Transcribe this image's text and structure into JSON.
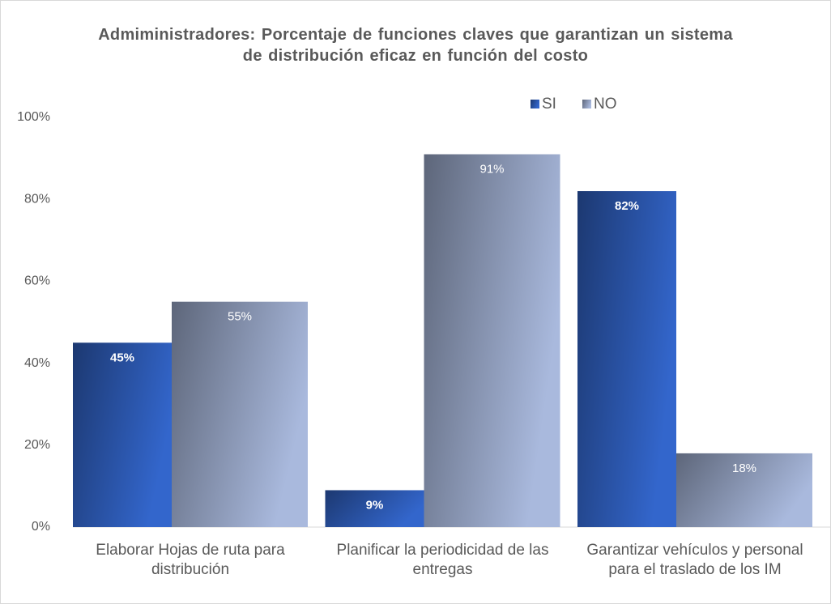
{
  "chart_data": {
    "type": "bar",
    "title": "Admiministradores: Porcentaje de funciones claves que garantizan un sistema de distribución eficaz en función del costo",
    "categories": [
      "Elaborar Hojas de ruta para distribución",
      "Planificar la periodicidad de las entregas",
      "Garantizar vehículos y personal para el traslado de los IM"
    ],
    "series": [
      {
        "name": "SI",
        "color": "#3366cc",
        "values": [
          45,
          9,
          82
        ],
        "value_labels": [
          "45%",
          "9%",
          "82%"
        ]
      },
      {
        "name": "NO",
        "color": "#a9b9dd",
        "values": [
          55,
          91,
          18
        ],
        "value_labels": [
          "55%",
          "91%",
          "18%"
        ]
      }
    ],
    "ylim": [
      0,
      100
    ],
    "yticks": [
      {
        "value": 0,
        "label": "0%"
      },
      {
        "value": 20,
        "label": "20%"
      },
      {
        "value": 40,
        "label": "40%"
      },
      {
        "value": 60,
        "label": "60%"
      },
      {
        "value": 80,
        "label": "80%"
      },
      {
        "value": 100,
        "label": "100%"
      }
    ],
    "grid": false,
    "legend": "top-right"
  }
}
